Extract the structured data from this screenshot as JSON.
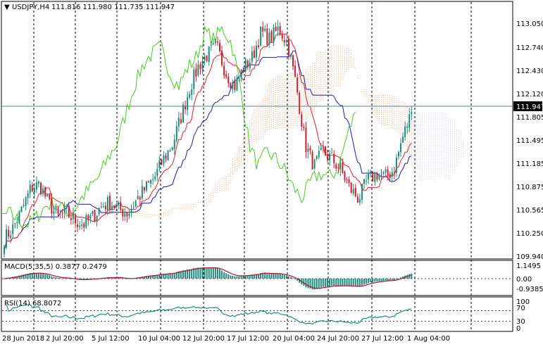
{
  "header": {
    "symbol_tf": "USDJPY,H4",
    "ohlc": "111.816 111.980 111.735 111.947"
  },
  "price_axis": {
    "labels": [
      "113.050",
      "112.740",
      "112.430",
      "112.120",
      "111.805",
      "111.495",
      "111.185",
      "110.875",
      "110.565",
      "110.250",
      "109.940"
    ],
    "current": "111.947"
  },
  "macd": {
    "title": "MACD(5,35,5) 0.3877 0.2479",
    "axis": [
      "1.1495",
      "0.00",
      "-0.9385"
    ]
  },
  "rsi": {
    "title": "RSI(14) 68.8072",
    "axis": [
      "100",
      "70",
      "30",
      "0"
    ]
  },
  "time_axis": {
    "labels": [
      "28 Jun 2018",
      "2 Jul 20:00",
      "5 Jul 12:00",
      "10 Jul 04:00",
      "12 Jul 20:00",
      "17 Jul 12:00",
      "20 Jul 04:00",
      "24 Jul 20:00",
      "27 Jul 12:00",
      "1 Aug 04:00"
    ]
  },
  "colors": {
    "bull": "#1e8a7a",
    "bear": "#cc1f2e",
    "tenkan": "#e0202a",
    "kijun": "#1a1aa8",
    "chikou": "#44cc22",
    "cloud": "#e8a070",
    "cloud_future": "#c8c8e0",
    "current_line": "#4a8a8a",
    "macd_hist": "#1e8a7a",
    "macd_signal": "#b01030"
  },
  "chart_data": [
    {
      "type": "candlestick",
      "title": "USDJPY,H4",
      "ylim": [
        109.94,
        113.3
      ],
      "current_price": 111.947,
      "anchors": [
        110.2,
        110.35,
        110.6,
        110.9,
        110.95,
        110.7,
        110.5,
        110.55,
        110.45,
        110.4,
        110.5,
        110.65,
        110.7,
        110.6,
        110.55,
        110.75,
        110.9,
        111.05,
        111.3,
        111.5,
        111.9,
        112.3,
        112.6,
        112.75,
        112.85,
        112.5,
        112.3,
        112.55,
        112.7,
        113.05,
        112.95,
        113.1,
        112.9,
        112.3,
        111.5,
        111.2,
        111.4,
        111.3,
        111.15,
        110.9,
        110.75,
        111.0,
        111.1,
        111.05,
        111.15,
        111.6,
        111.947
      ]
    },
    {
      "type": "histogram",
      "title": "MACD(5,35,5)",
      "macd": 0.3877,
      "signal": 0.2479,
      "ylim": [
        -0.9385,
        1.1495
      ]
    },
    {
      "type": "line",
      "title": "RSI(14)",
      "value": 68.8072,
      "ylim": [
        0,
        100
      ],
      "levels": [
        70,
        30
      ]
    }
  ]
}
